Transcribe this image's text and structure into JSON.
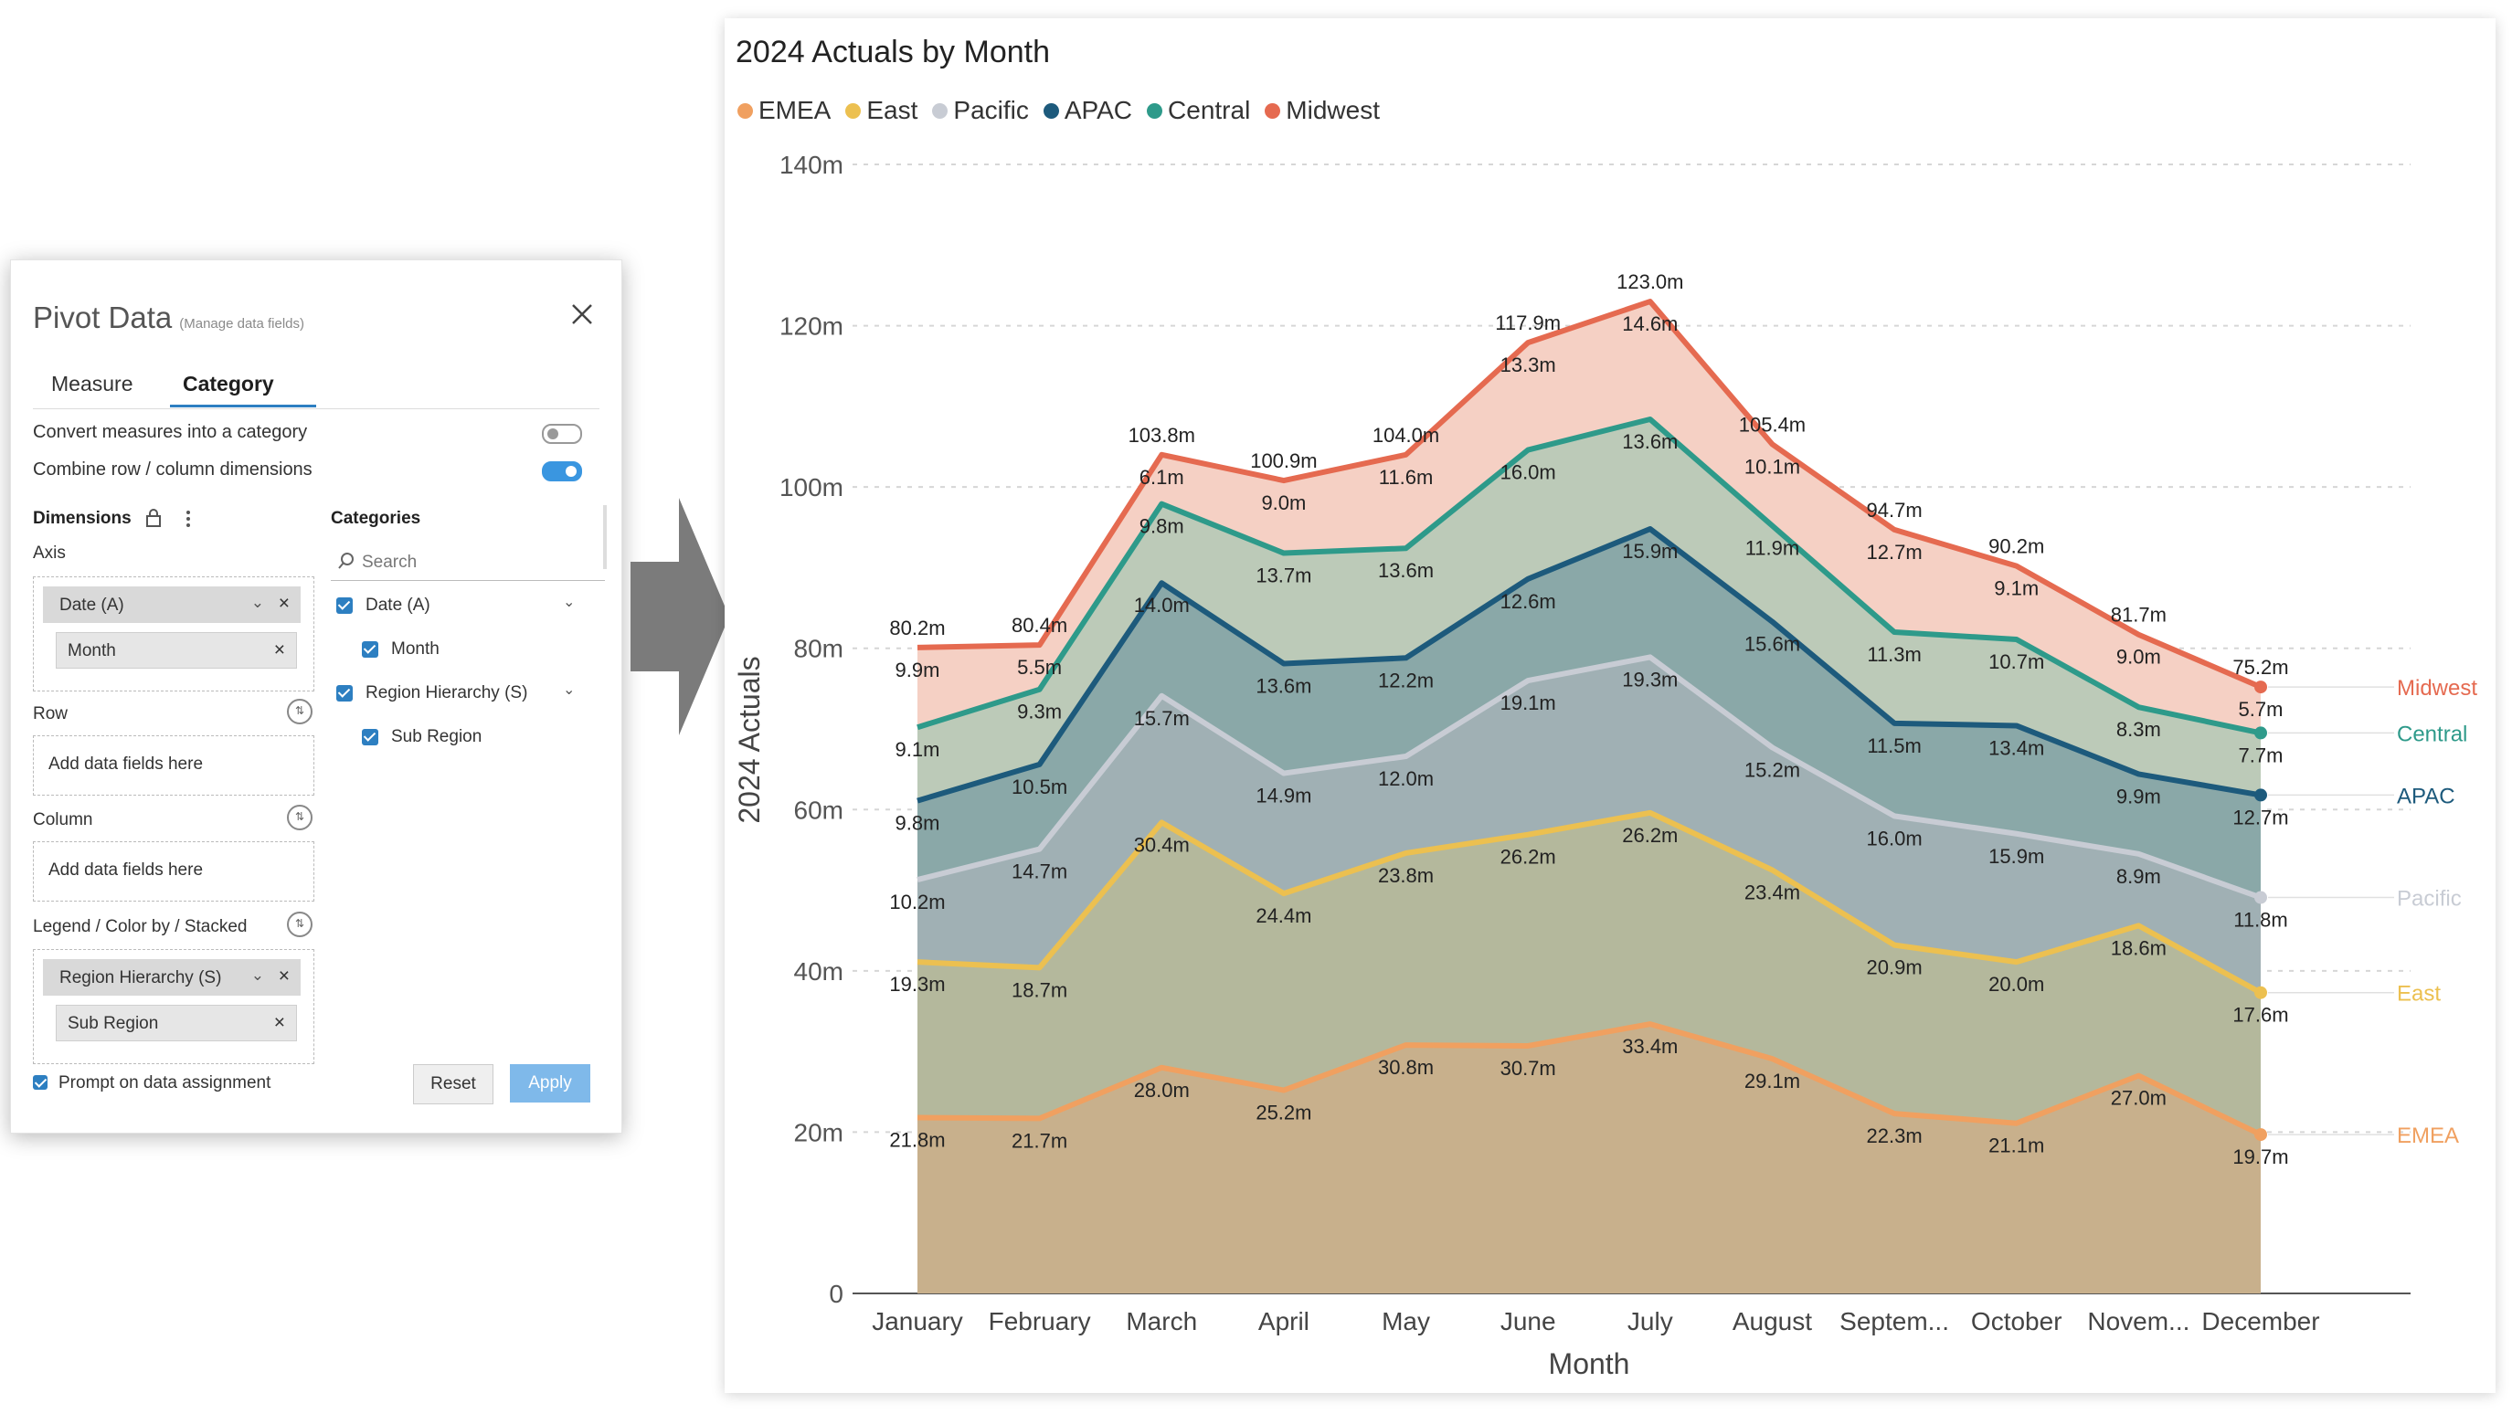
{
  "panel": {
    "title": "Pivot Data",
    "subtitle": "(Manage data fields)",
    "tabs": [
      "Measure",
      "Category"
    ],
    "active_tab": "Category",
    "options": [
      {
        "label": "Convert measures into a category",
        "on": false
      },
      {
        "label": "Combine row / column dimensions",
        "on": true
      }
    ],
    "dimensions_label": "Dimensions",
    "categories_label": "Categories",
    "axis_label": "Axis",
    "axis_chip": "Date (A)",
    "axis_sub": "Month",
    "row_label": "Row",
    "row_placeholder": "Add data fields here",
    "column_label": "Column",
    "column_placeholder": "Add data fields here",
    "legend_label": "Legend / Color by / Stacked",
    "legend_chip": "Region Hierarchy (S)",
    "legend_sub": "Sub Region",
    "search_placeholder": "Search",
    "cat_items": [
      {
        "label": "Date (A)",
        "checked": true
      },
      {
        "label": "Month",
        "checked": true
      },
      {
        "label": "Region Hierarchy (S)",
        "checked": true
      },
      {
        "label": "Sub Region",
        "checked": true
      }
    ],
    "prompt_label": "Prompt on data assignment",
    "prompt_checked": true,
    "reset_label": "Reset",
    "apply_label": "Apply"
  },
  "chart_data": {
    "type": "area",
    "stacked": true,
    "title": "2024 Actuals by Month",
    "xlabel": "Month",
    "ylabel": "2024 Actuals",
    "ylim": [
      0,
      140
    ],
    "y_ticks": [
      "0",
      "20m",
      "40m",
      "60m",
      "80m",
      "100m",
      "120m",
      "140m"
    ],
    "grid": true,
    "legend_position": "top-left",
    "categories": [
      "January",
      "February",
      "March",
      "April",
      "May",
      "June",
      "July",
      "August",
      "Septem...",
      "October",
      "Novem...",
      "December"
    ],
    "series": [
      {
        "name": "EMEA",
        "color": "#f0a060",
        "fill": "#c8b08c",
        "values": [
          21.8,
          21.7,
          28.0,
          25.2,
          30.8,
          30.7,
          33.4,
          29.1,
          22.3,
          21.1,
          27.0,
          19.7
        ]
      },
      {
        "name": "East",
        "color": "#ecc050",
        "fill": "#b4b89c",
        "values": [
          19.3,
          18.7,
          30.4,
          24.4,
          23.8,
          26.2,
          26.2,
          23.4,
          20.9,
          20.0,
          18.6,
          17.6
        ]
      },
      {
        "name": "Pacific",
        "color": "#c8ccd4",
        "fill": "#a0b0b4",
        "values": [
          10.2,
          14.7,
          15.7,
          14.9,
          12.0,
          19.1,
          19.3,
          15.2,
          16.0,
          15.9,
          8.9,
          11.8
        ]
      },
      {
        "name": "APAC",
        "color": "#1d5a7c",
        "fill": "#8aa8a8",
        "values": [
          9.8,
          10.5,
          14.0,
          13.6,
          12.2,
          12.6,
          15.9,
          15.6,
          11.5,
          13.4,
          9.9,
          12.7
        ]
      },
      {
        "name": "Central",
        "color": "#2e9a8a",
        "fill": "#bccab8",
        "values": [
          9.1,
          9.3,
          9.8,
          13.7,
          13.6,
          16.0,
          13.6,
          11.9,
          11.3,
          10.7,
          8.3,
          7.7
        ]
      },
      {
        "name": "Midwest",
        "color": "#e56a50",
        "fill": "#f5d0c4",
        "values": [
          9.9,
          5.5,
          6.1,
          9.0,
          11.6,
          13.3,
          14.6,
          10.1,
          12.7,
          9.1,
          9.0,
          5.7
        ]
      }
    ],
    "data_labels": [
      [
        "21.8m",
        "21.7m",
        "28.0m",
        "25.2m",
        "30.8m",
        "30.7m",
        "33.4m",
        "29.1m",
        "22.3m",
        "21.1m",
        "27.0m",
        "19.7m"
      ],
      [
        "19.3m",
        "18.7m",
        "30.4m",
        "24.4m",
        "23.8m",
        "26.2m",
        "26.2m",
        "23.4m",
        "20.9m",
        "20.0m",
        "18.6m",
        "17.6m"
      ],
      [
        "10.2m",
        "14.7m",
        "15.7m",
        "14.9m",
        "12.0m",
        "19.1m",
        "19.3m",
        "15.2m",
        "16.0m",
        "15.9m",
        "8.9m",
        "11.8m"
      ],
      [
        "9.8m",
        "10.5m",
        "14.0m",
        "13.6m",
        "12.2m",
        "12.6m",
        "15.9m",
        "15.6m",
        "11.5m",
        "13.4m",
        "9.9m",
        "12.7m"
      ],
      [
        "9.1m",
        "9.3m",
        "9.8m",
        "13.7m",
        "13.6m",
        "16.0m",
        "13.6m",
        "11.9m",
        "11.3m",
        "10.7m",
        "8.3m",
        "7.7m"
      ],
      [
        "9.9m",
        "5.5m",
        "6.1m",
        "9.0m",
        "11.6m",
        "13.3m",
        "14.6m",
        "10.1m",
        "12.7m",
        "9.1m",
        "9.0m",
        "5.7m"
      ]
    ],
    "totals": [
      "80.2m",
      "80.4m",
      "103.8m",
      "100.9m",
      "104.0m",
      "117.9m",
      "123.0m",
      "105.4m",
      "94.7m",
      "90.2m",
      "81.7m",
      "75.2m"
    ],
    "end_labels": [
      "EMEA",
      "East",
      "Pacific",
      "APAC",
      "Central",
      "Midwest"
    ]
  }
}
